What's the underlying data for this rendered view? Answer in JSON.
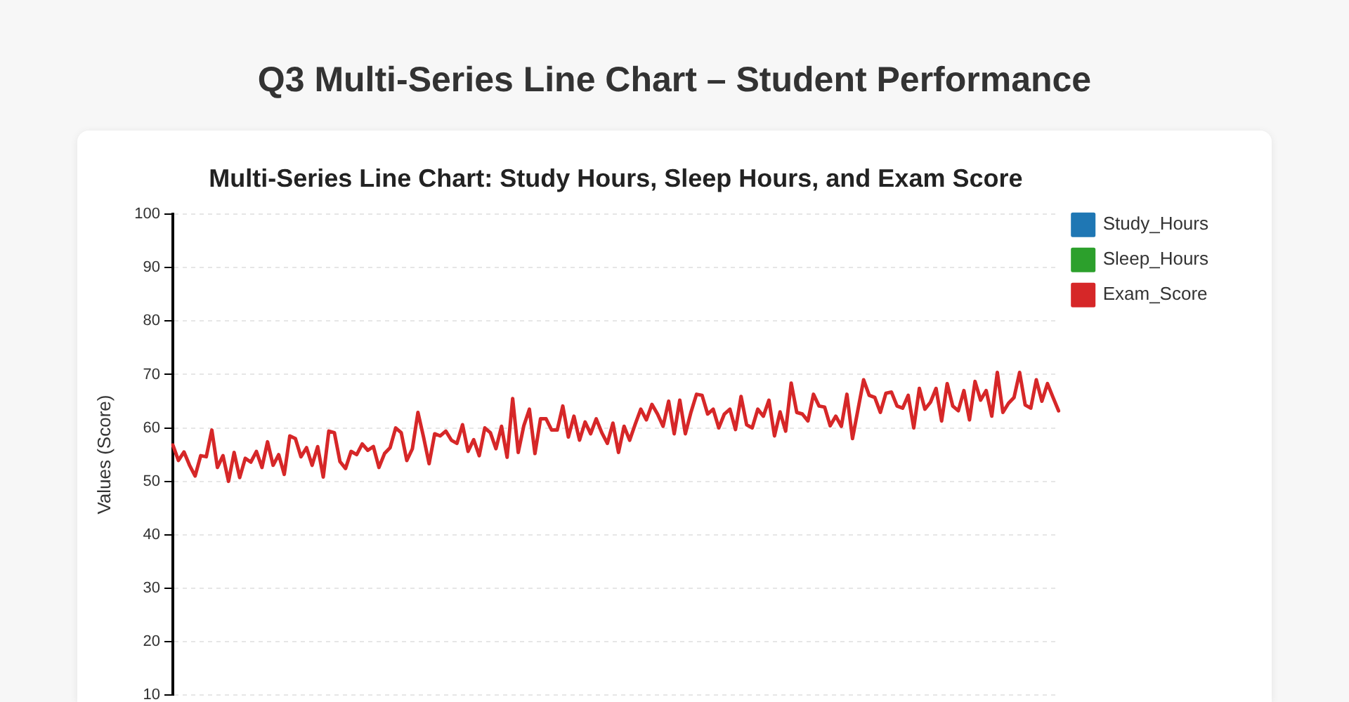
{
  "chart_data": {
    "type": "line",
    "title": "Q3 Multi-Series Line Chart – Student Performance",
    "subtitle": "Multi-Series Line Chart: Study Hours, Sleep Hours, and Exam Score",
    "ylabel": "Values (Score)",
    "categories": [
      null,
      null,
      null,
      null,
      null,
      null,
      null,
      null,
      null,
      null,
      null,
      null,
      null,
      null,
      null,
      null,
      null,
      null,
      null,
      null,
      null,
      null,
      null,
      null,
      null,
      null,
      null,
      null,
      null,
      null,
      null,
      null,
      null,
      null,
      null,
      null,
      null,
      null,
      null,
      null,
      null,
      null,
      null,
      null,
      null,
      null,
      null,
      null,
      null,
      null,
      null,
      null,
      null,
      null,
      null,
      null,
      null,
      null,
      null,
      null,
      null,
      null,
      null,
      null,
      null,
      null,
      null,
      null,
      null,
      null,
      null,
      null,
      null,
      null,
      null,
      null,
      null,
      null,
      null,
      null,
      null,
      null,
      null,
      null,
      null,
      null,
      null,
      null,
      null,
      null,
      null,
      null,
      null,
      null,
      null,
      null,
      null,
      null,
      null,
      null,
      null,
      null,
      null,
      null,
      null,
      null,
      null,
      null,
      null,
      null,
      null,
      null,
      null,
      null,
      null,
      null,
      null,
      null,
      null,
      null,
      null,
      null,
      null,
      null,
      null,
      null,
      null,
      null,
      null,
      null,
      null,
      null,
      null,
      null,
      null,
      null,
      null,
      null,
      null,
      null,
      null,
      null,
      null,
      null,
      null,
      null,
      null,
      null,
      null,
      null,
      null,
      null,
      null,
      null,
      null,
      null,
      null,
      null,
      null,
      null
    ],
    "series": [
      {
        "name": "Study_Hours",
        "color": "#1f77b4",
        "values": [
          null,
          null,
          null,
          null,
          null,
          null,
          null,
          null,
          null,
          null,
          null,
          null,
          null,
          null,
          null,
          null,
          null,
          null,
          null,
          null,
          null,
          null,
          null,
          null,
          null,
          null,
          null,
          null,
          null,
          null,
          null,
          null,
          null,
          null,
          null,
          null,
          null,
          null,
          null,
          null,
          null,
          null,
          null,
          null,
          null,
          null,
          null,
          null,
          null,
          null,
          null,
          null,
          null,
          null,
          null,
          null,
          null,
          null,
          null,
          null,
          null,
          null,
          null,
          null,
          null,
          null,
          null,
          null,
          null,
          null,
          null,
          null,
          null,
          null,
          null,
          null,
          null,
          null,
          null,
          null,
          null,
          null,
          null,
          null,
          null,
          null,
          null,
          null,
          null,
          null,
          null,
          null,
          null,
          null,
          null,
          null,
          null,
          null,
          null,
          null,
          null,
          null,
          null,
          null,
          null,
          null,
          null,
          null,
          null,
          null,
          null,
          null,
          null,
          null,
          null,
          null,
          null,
          null,
          null,
          null,
          null,
          null,
          null,
          null,
          null,
          null,
          null,
          null,
          null,
          null,
          null,
          null,
          null,
          null,
          null,
          null,
          null,
          null,
          null,
          null,
          null,
          null,
          null,
          null,
          null,
          null,
          null,
          null,
          null,
          null,
          null,
          null,
          null,
          null,
          null,
          null,
          null,
          null,
          null,
          null
        ]
      },
      {
        "name": "Sleep_Hours",
        "color": "#2ca02c",
        "values": [
          null,
          null,
          null,
          null,
          null,
          null,
          null,
          null,
          null,
          null,
          null,
          null,
          null,
          null,
          null,
          null,
          null,
          null,
          null,
          null,
          null,
          null,
          null,
          null,
          null,
          null,
          null,
          null,
          null,
          null,
          null,
          null,
          null,
          null,
          null,
          null,
          null,
          null,
          null,
          null,
          null,
          null,
          null,
          null,
          null,
          null,
          null,
          null,
          null,
          null,
          null,
          null,
          null,
          null,
          null,
          null,
          null,
          null,
          null,
          null,
          null,
          null,
          null,
          null,
          null,
          null,
          null,
          null,
          null,
          null,
          null,
          null,
          null,
          null,
          null,
          null,
          null,
          null,
          null,
          null,
          null,
          null,
          null,
          null,
          null,
          null,
          null,
          null,
          null,
          null,
          null,
          null,
          null,
          null,
          null,
          null,
          null,
          null,
          null,
          null,
          null,
          null,
          null,
          null,
          null,
          null,
          null,
          null,
          null,
          null,
          null,
          null,
          null,
          null,
          null,
          null,
          null,
          null,
          null,
          null,
          null,
          null,
          null,
          null,
          null,
          null,
          null,
          null,
          null,
          null,
          null,
          null,
          null,
          null,
          null,
          null,
          null,
          null,
          null,
          null,
          null,
          null,
          null,
          null,
          null,
          null,
          null,
          null,
          null,
          null,
          null,
          null,
          null,
          null,
          null,
          null,
          null,
          null,
          null,
          null
        ]
      },
      {
        "name": "Exam_Score",
        "color": "#d62728",
        "values": [
          56.8,
          53.9,
          55.5,
          53,
          51,
          54.8,
          54.6,
          59.6,
          52.6,
          54.8,
          50,
          55.4,
          50.7,
          54.3,
          53.6,
          55.6,
          52.6,
          57.4,
          53,
          55,
          51.3,
          58.5,
          58,
          54.6,
          56.3,
          53,
          56.5,
          50.8,
          59.4,
          59.1,
          53.7,
          52.4,
          55.6,
          55,
          57,
          55.8,
          56.5,
          52.6,
          55.2,
          56.3,
          60,
          59.1,
          53.9,
          56.1,
          62.9,
          58.3,
          53.3,
          58.9,
          58.5,
          59.4,
          57.7,
          57.1,
          60.6,
          55.6,
          57.8,
          54.8,
          60,
          59.1,
          56.1,
          60.3,
          54.5,
          65.5,
          55.4,
          60.4,
          63.5,
          55.2,
          61.7,
          61.7,
          59.6,
          59.6,
          64.1,
          58.3,
          62.2,
          57.7,
          61.1,
          58.9,
          61.7,
          59.1,
          57.1,
          60.9,
          55.4,
          60.3,
          57.7,
          60.7,
          63.5,
          61.5,
          64.4,
          62.6,
          60.3,
          65,
          58.9,
          65.2,
          58.9,
          62.9,
          66.3,
          66.1,
          62.6,
          63.5,
          60,
          62.6,
          63.5,
          59.7,
          65.9,
          60.6,
          60,
          63.5,
          62.2,
          65.2,
          58.5,
          63,
          59.4,
          68.4,
          62.9,
          62.6,
          61.3,
          66.3,
          64.1,
          63.9,
          60.4,
          62.2,
          60.3,
          66.3,
          58,
          63.5,
          69,
          66.1,
          65.7,
          62.9,
          66.5,
          66.7,
          64.1,
          63.7,
          66.1,
          60,
          67.4,
          63.5,
          64.8,
          67.4,
          61.3,
          68.3,
          64.1,
          63.2,
          67,
          61.5,
          68.7,
          65.2,
          67,
          62.2,
          70.4,
          62.9,
          64.6,
          65.7,
          70.4,
          64.3,
          63.7,
          69,
          65,
          68.3,
          65.7,
          63.2
        ]
      }
    ],
    "ylim": [
      10,
      100
    ],
    "yticks": [
      10,
      20,
      30,
      40,
      50,
      60,
      70,
      80,
      90,
      100
    ],
    "grid": "y",
    "legend": "top right"
  }
}
